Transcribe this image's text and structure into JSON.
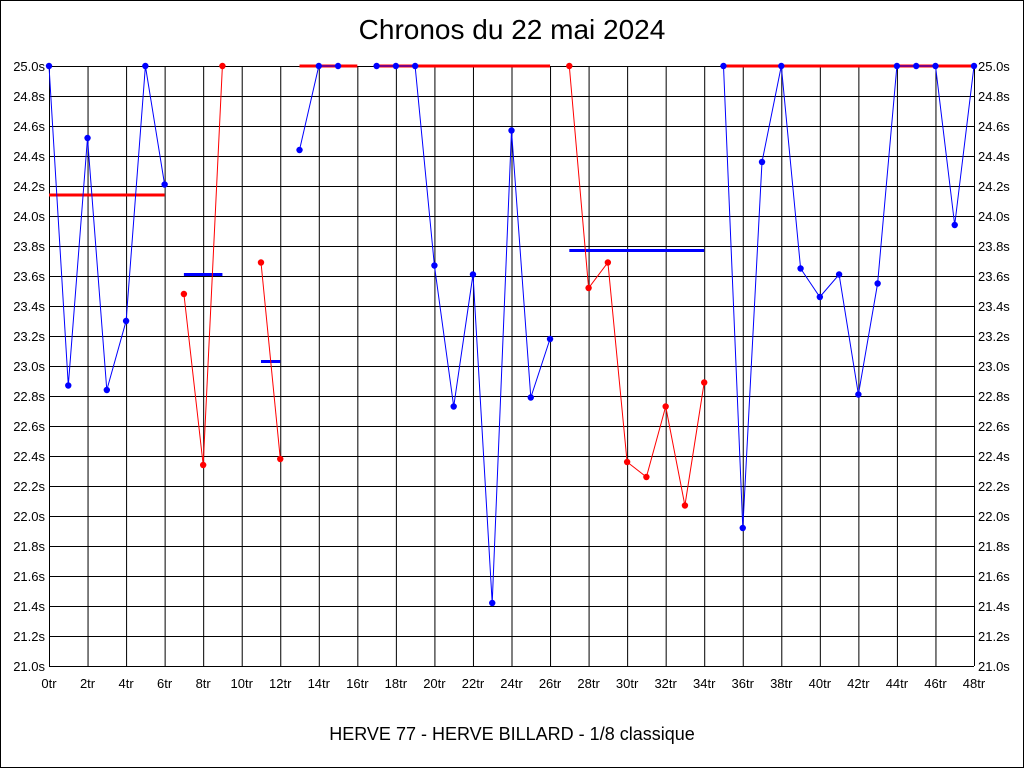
{
  "chart_data": {
    "type": "line",
    "title": "Chronos du 22 mai 2024",
    "subtitle": "HERVE 77 - HERVE BILLARD - 1/8 classique",
    "x_ticks": [
      "0tr",
      "2tr",
      "4tr",
      "6tr",
      "8tr",
      "10tr",
      "12tr",
      "14tr",
      "16tr",
      "18tr",
      "20tr",
      "22tr",
      "24tr",
      "26tr",
      "28tr",
      "30tr",
      "32tr",
      "34tr",
      "36tr",
      "38tr",
      "40tr",
      "42tr",
      "44tr",
      "46tr",
      "48tr"
    ],
    "y_ticks": [
      "21.0s",
      "21.2s",
      "21.4s",
      "21.6s",
      "21.8s",
      "22.0s",
      "22.2s",
      "22.4s",
      "22.6s",
      "22.8s",
      "23.0s",
      "23.2s",
      "23.4s",
      "23.6s",
      "23.8s",
      "24.0s",
      "24.2s",
      "24.4s",
      "24.6s",
      "24.8s",
      "25.0s"
    ],
    "xlim": [
      0,
      48
    ],
    "ylim": [
      21.0,
      25.0
    ],
    "grid": true,
    "colors": {
      "blue": "#0000ff",
      "red": "#ff0000",
      "grid": "#000000"
    },
    "series": [
      {
        "color": "blue",
        "points": [
          [
            0,
            25.0
          ],
          [
            1,
            22.87
          ],
          [
            2,
            24.52
          ],
          [
            3,
            22.84
          ],
          [
            4,
            23.3
          ],
          [
            5,
            25.0
          ],
          [
            6,
            24.21
          ]
        ]
      },
      {
        "color": "red",
        "points": [
          [
            7,
            23.48
          ],
          [
            8,
            22.34
          ],
          [
            9,
            25.0
          ]
        ]
      },
      {
        "color": "red",
        "points": [
          [
            11,
            23.69
          ],
          [
            12,
            22.38
          ]
        ]
      },
      {
        "color": "blue",
        "points": [
          [
            13,
            24.44
          ],
          [
            14,
            25.0
          ],
          [
            15,
            25.0
          ]
        ]
      },
      {
        "color": "blue",
        "points": [
          [
            17,
            25.0
          ],
          [
            18,
            25.0
          ],
          [
            19,
            25.0
          ],
          [
            20,
            23.67
          ],
          [
            21,
            22.73
          ],
          [
            22,
            23.61
          ],
          [
            23,
            21.42
          ],
          [
            24,
            24.57
          ],
          [
            25,
            22.79
          ],
          [
            26,
            23.18
          ]
        ]
      },
      {
        "color": "red",
        "points": [
          [
            27,
            25.0
          ],
          [
            28,
            23.52
          ],
          [
            29,
            23.69
          ],
          [
            30,
            22.36
          ],
          [
            31,
            22.26
          ],
          [
            32,
            22.73
          ],
          [
            33,
            22.07
          ],
          [
            34,
            22.89
          ]
        ]
      },
      {
        "color": "blue",
        "points": [
          [
            35,
            25.0
          ],
          [
            36,
            21.92
          ],
          [
            37,
            24.36
          ],
          [
            38,
            25.0
          ],
          [
            39,
            23.65
          ],
          [
            40,
            23.46
          ],
          [
            41,
            23.61
          ],
          [
            42,
            22.81
          ],
          [
            43,
            23.55
          ],
          [
            44,
            25.0
          ],
          [
            45,
            25.0
          ],
          [
            46,
            25.0
          ],
          [
            47,
            23.94
          ],
          [
            48,
            25.0
          ]
        ]
      }
    ],
    "averages": [
      {
        "color": "red",
        "x": [
          0,
          6
        ],
        "y": 24.14
      },
      {
        "color": "blue",
        "x": [
          7,
          9
        ],
        "y": 23.61
      },
      {
        "color": "blue",
        "x": [
          11,
          12
        ],
        "y": 23.03
      },
      {
        "color": "red",
        "x": [
          13,
          16
        ],
        "y": 25.0
      },
      {
        "color": "red",
        "x": [
          17,
          26
        ],
        "y": 25.0
      },
      {
        "color": "blue",
        "x": [
          27,
          34
        ],
        "y": 23.77
      },
      {
        "color": "red",
        "x": [
          35,
          48
        ],
        "y": 25.0
      }
    ]
  }
}
